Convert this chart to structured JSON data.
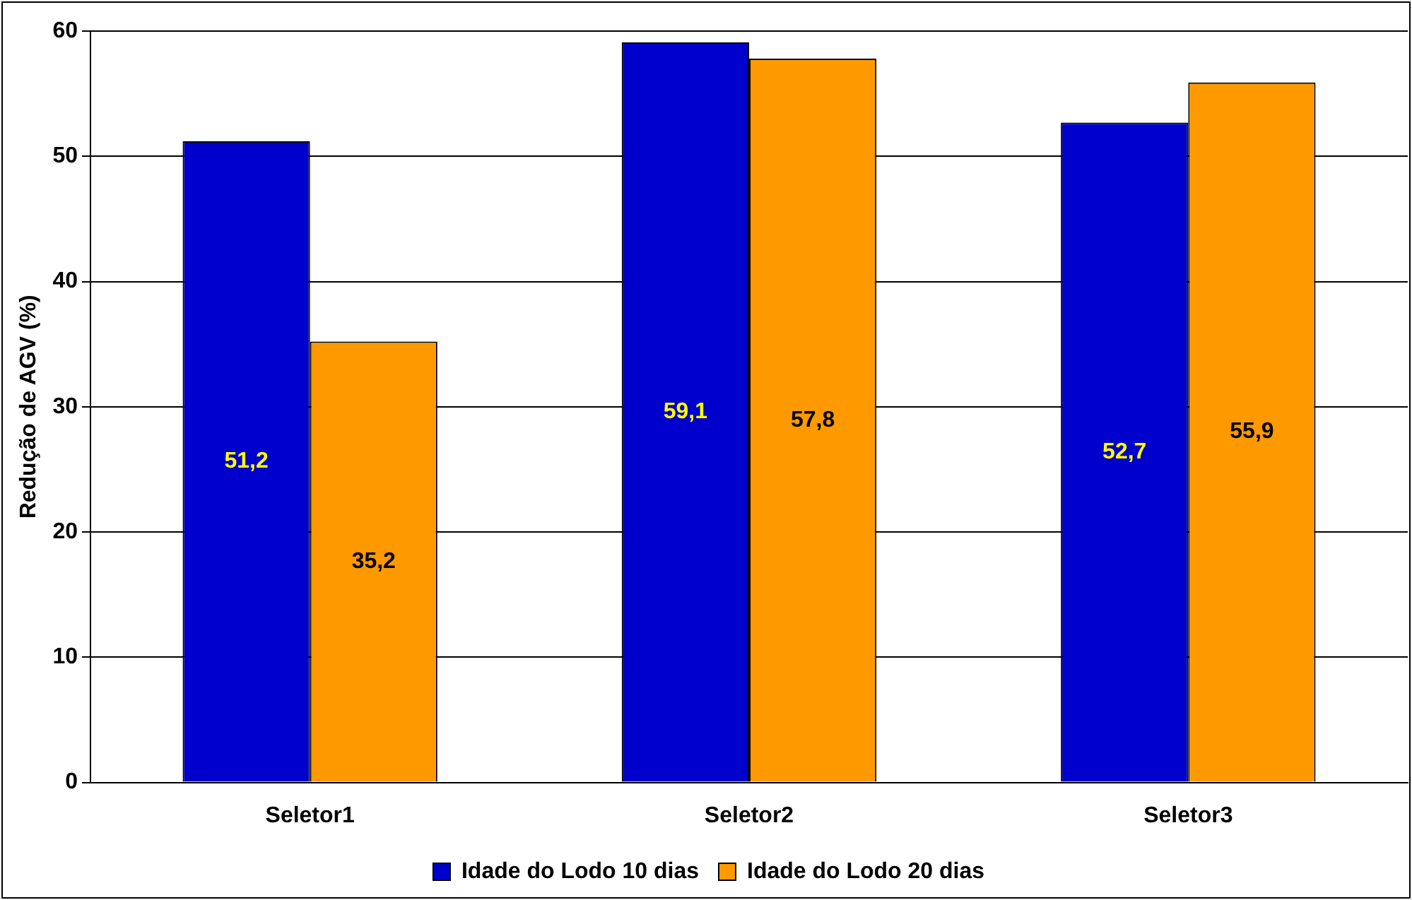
{
  "chart_data": {
    "type": "bar",
    "ylabel": "Redução de AGV (%)",
    "categories": [
      "Seletor1",
      "Seletor2",
      "Seletor3"
    ],
    "series": [
      {
        "name": "Idade do Lodo 10 dias",
        "color": "#0000cc",
        "values": [
          51.2,
          59.1,
          52.7
        ],
        "value_labels": [
          "51,2",
          "59,1",
          "52,7"
        ]
      },
      {
        "name": "Idade do Lodo 20 dias",
        "color": "#ff9900",
        "values": [
          35.2,
          57.8,
          55.9
        ],
        "value_labels": [
          "35,2",
          "57,8",
          "55,9"
        ]
      }
    ],
    "ylim": [
      0,
      60
    ],
    "yticks": [
      0,
      10,
      20,
      30,
      40,
      50,
      60
    ],
    "grid": "y",
    "legend": "bottom"
  }
}
